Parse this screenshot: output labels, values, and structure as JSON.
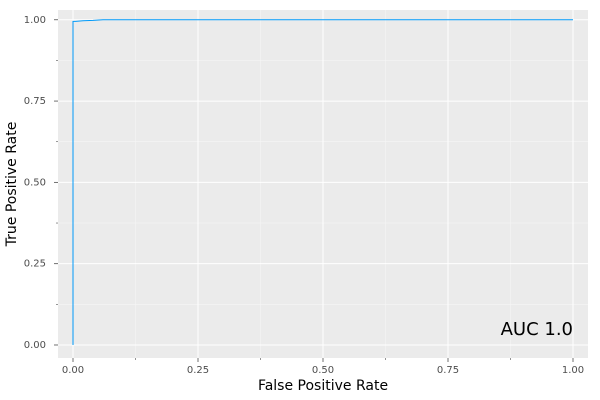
{
  "chart_data": {
    "type": "line",
    "x_label": "False Positive Rate",
    "y_label": "True Positive Rate",
    "annotation": "AUC 1.0",
    "x": [
      0,
      0,
      0.005,
      0.02,
      0.04,
      0.06,
      1
    ],
    "series": [
      {
        "color": "#009af9",
        "values": [
          0,
          0.995,
          0.995,
          0.997,
          0.998,
          1,
          1
        ]
      }
    ],
    "xlim": [
      -0.03,
      1.03
    ],
    "ylim": [
      -0.04,
      1.03
    ],
    "xticks": [
      {
        "value": 0,
        "label": "0.00"
      },
      {
        "value": 0.25,
        "label": "0.25"
      },
      {
        "value": 0.5,
        "label": "0.50"
      },
      {
        "value": 0.75,
        "label": "0.75"
      },
      {
        "value": 1,
        "label": "1.00"
      }
    ],
    "yticks": [
      {
        "value": 0,
        "label": "0.00"
      },
      {
        "value": 0.25,
        "label": "0.25"
      },
      {
        "value": 0.5,
        "label": "0.50"
      },
      {
        "value": 0.75,
        "label": "0.75"
      },
      {
        "value": 1,
        "label": "1.00"
      }
    ],
    "grid": true
  }
}
